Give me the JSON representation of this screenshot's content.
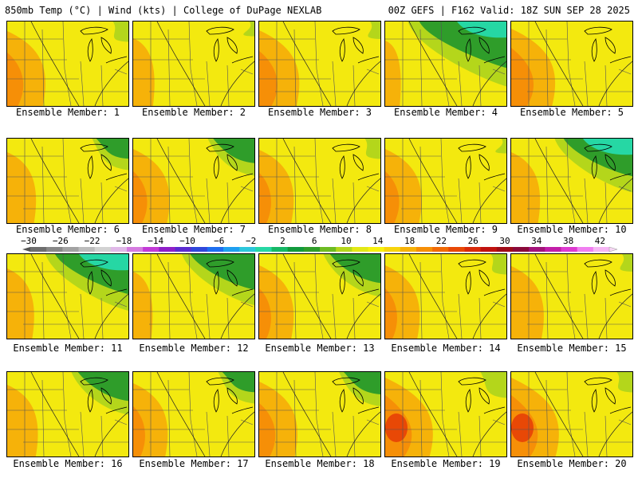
{
  "header": {
    "left_title": "850mb Temp (°C) | Wind (kts) | College of DuPage NEXLAB",
    "right_title": "00Z GEFS | F162 Valid: 18Z SUN SEP 28 2025"
  },
  "members": [
    {
      "label": "Ensemble Member: 1",
      "warm_west": 0.65,
      "cool_ne": 0.15
    },
    {
      "label": "Ensemble Member: 2",
      "warm_west": 0.2,
      "cool_ne": 0.05
    },
    {
      "label": "Ensemble Member: 3",
      "warm_west": 0.7,
      "cool_ne": 0.1
    },
    {
      "label": "Ensemble Member: 4",
      "warm_west": 0.05,
      "cool_ne": 0.95
    },
    {
      "label": "Ensemble Member: 5",
      "warm_west": 0.8,
      "cool_ne": 0.0
    },
    {
      "label": "Ensemble Member: 6",
      "warm_west": 0.4,
      "cool_ne": 0.35
    },
    {
      "label": "Ensemble Member: 7",
      "warm_west": 0.6,
      "cool_ne": 0.45
    },
    {
      "label": "Ensemble Member: 8",
      "warm_west": 0.55,
      "cool_ne": 0.15
    },
    {
      "label": "Ensemble Member: 9",
      "warm_west": 0.6,
      "cool_ne": 0.05
    },
    {
      "label": "Ensemble Member: 10",
      "warm_west": 0.4,
      "cool_ne": 0.75
    },
    {
      "label": "Ensemble Member: 11",
      "warm_west": 0.35,
      "cool_ne": 0.8
    },
    {
      "label": "Ensemble Member: 12",
      "warm_west": 0.15,
      "cool_ne": 0.7
    },
    {
      "label": "Ensemble Member: 13",
      "warm_west": 0.55,
      "cool_ne": 0.55
    },
    {
      "label": "Ensemble Member: 14",
      "warm_west": 0.55,
      "cool_ne": 0.15
    },
    {
      "label": "Ensemble Member: 15",
      "warm_west": 0.5,
      "cool_ne": 0.1
    },
    {
      "label": "Ensemble Member: 16",
      "warm_west": 0.45,
      "cool_ne": 0.55
    },
    {
      "label": "Ensemble Member: 17",
      "warm_west": 0.55,
      "cool_ne": 0.35
    },
    {
      "label": "Ensemble Member: 18",
      "warm_west": 0.65,
      "cool_ne": 0.4
    },
    {
      "label": "Ensemble Member: 19",
      "warm_west": 0.9,
      "cool_ne": 0.25
    },
    {
      "label": "Ensemble Member: 20",
      "warm_west": 0.9,
      "cool_ne": 0.15
    }
  ],
  "colorbar": {
    "ticks": [
      "-30",
      "-26",
      "-22",
      "-18",
      "-14",
      "-10",
      "-6",
      "-2",
      "2",
      "6",
      "10",
      "14",
      "18",
      "22",
      "26",
      "30",
      "34",
      "38",
      "42"
    ],
    "colors": [
      "#6e6e6e",
      "#888888",
      "#a2a2a2",
      "#bcbcbc",
      "#d2d2d2",
      "#e0b8e8",
      "#d57be0",
      "#c23ad6",
      "#8f1fc8",
      "#5b2bd0",
      "#2f47db",
      "#1d6ef0",
      "#1f9ff0",
      "#2cc7dc",
      "#26d7a4",
      "#16b866",
      "#119a3c",
      "#2f9d2a",
      "#6dbb22",
      "#b4d61b",
      "#e2e816",
      "#f7f10e",
      "#f7d40c",
      "#f6b209",
      "#f68f07",
      "#f16a06",
      "#e84806",
      "#d82a0a",
      "#c0120f",
      "#9f0c18",
      "#8a0a3a",
      "#a3127a",
      "#c21ea8",
      "#de3ad0",
      "#f07ef0",
      "#f6b6f4"
    ]
  }
}
